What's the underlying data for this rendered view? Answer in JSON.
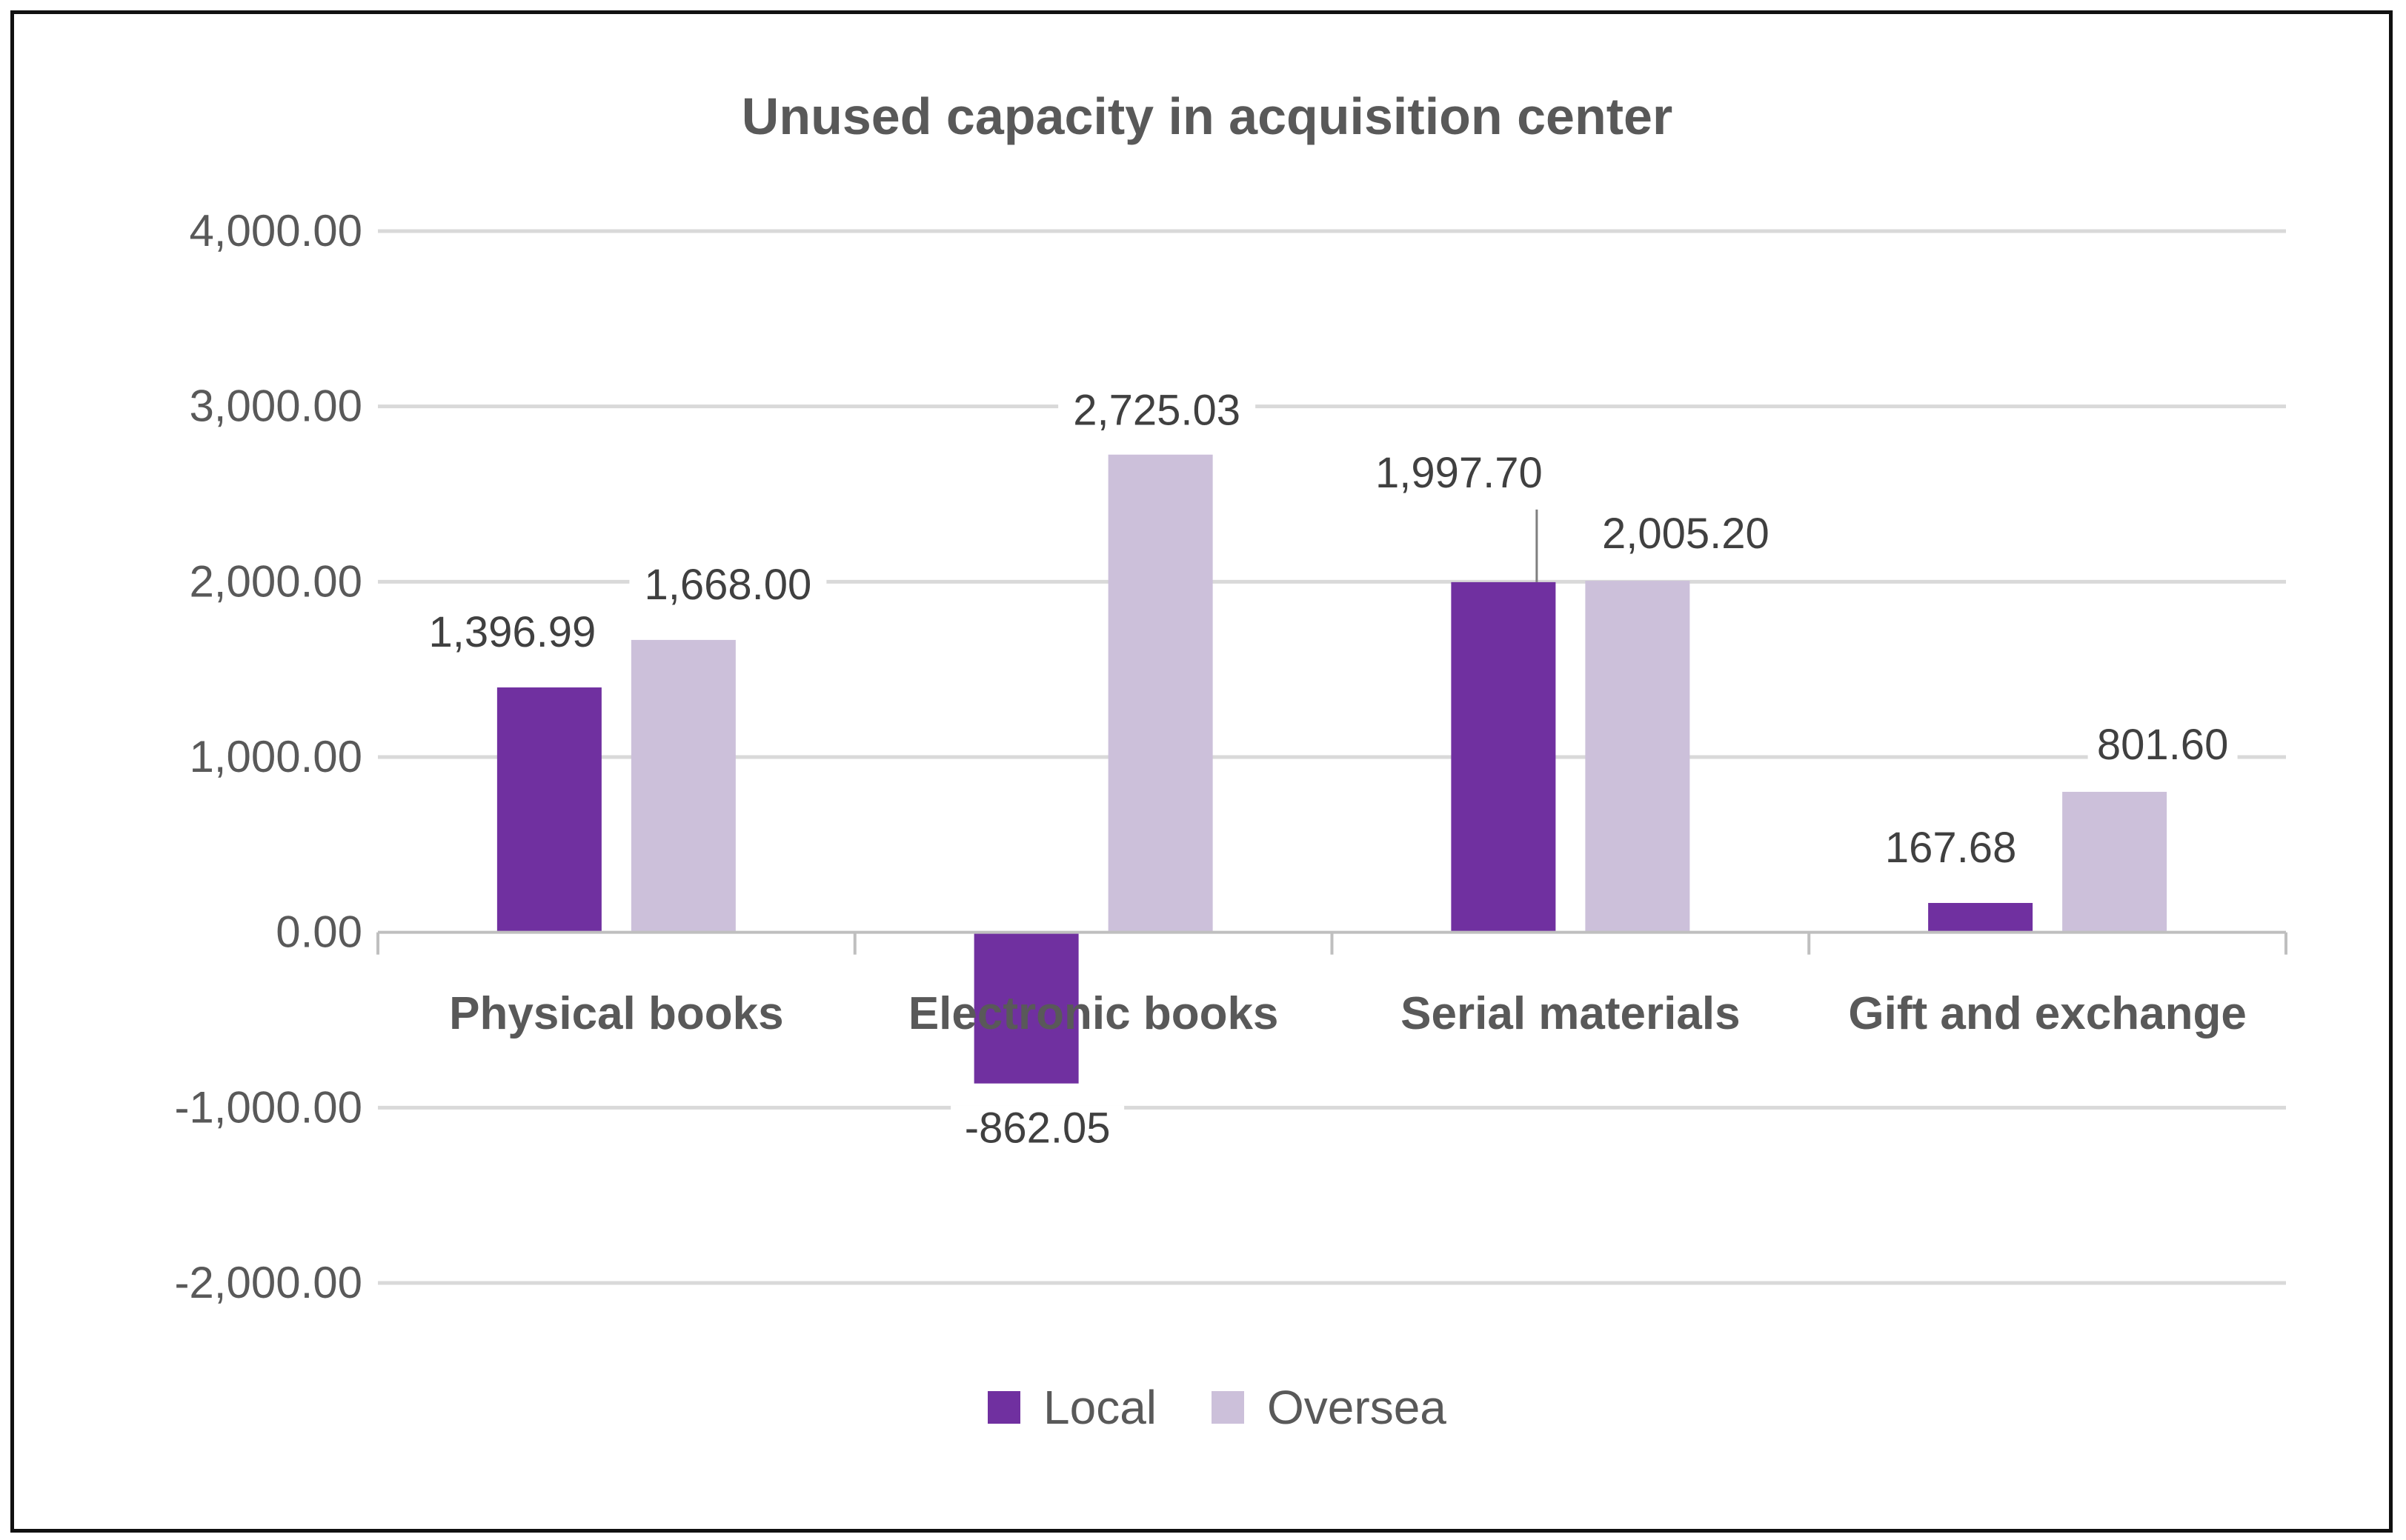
{
  "chart_data": {
    "type": "bar",
    "title": "Unused capacity in acquisition center",
    "categories": [
      "Physical books",
      "Electronic books",
      "Serial materials",
      "Gift and exchange"
    ],
    "series": [
      {
        "name": "Local",
        "color": "#7030A0",
        "values": [
          1396.99,
          -862.05,
          1997.7,
          167.68
        ],
        "labels": [
          "1,396.99",
          "-862.05",
          "1,997.70",
          "167.68"
        ]
      },
      {
        "name": "Oversea",
        "color": "#CCC0DA",
        "values": [
          1668.0,
          2725.03,
          2005.2,
          801.6
        ],
        "labels": [
          "1,668.00",
          "2,725.03",
          "2,005.20",
          "801.60"
        ]
      }
    ],
    "ylim": [
      -2000,
      4000
    ],
    "yticks": [
      4000,
      3000,
      2000,
      1000,
      0,
      -1000,
      -2000
    ],
    "ytick_labels": [
      "4,000.00",
      "3,000.00",
      "2,000.00",
      "1,000.00",
      "0.00",
      "-1,000.00",
      "-2,000.00"
    ],
    "xlabel": "",
    "ylabel": "",
    "grid": true,
    "legend_position": "bottom",
    "colors": {
      "gridline": "#D9D9D9",
      "axis": "#BFBFBF",
      "text": "#595959",
      "label": "#404040",
      "frame": "#111111"
    }
  }
}
